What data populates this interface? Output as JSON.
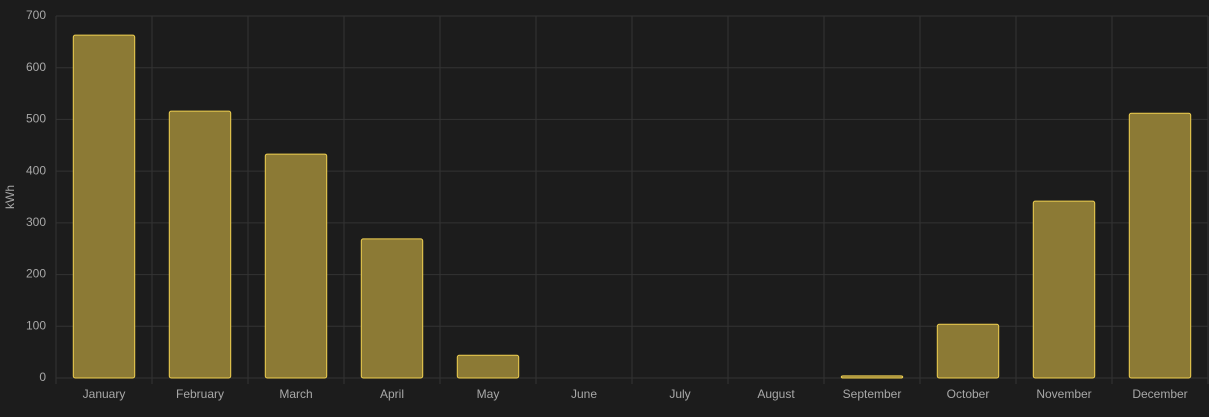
{
  "chart_data": {
    "type": "bar",
    "ylabel": "kWh",
    "categories": [
      "January",
      "February",
      "March",
      "April",
      "May",
      "June",
      "July",
      "August",
      "September",
      "October",
      "November",
      "December"
    ],
    "values": [
      663,
      516,
      433,
      269,
      44,
      0,
      0,
      0,
      4,
      104,
      342,
      512
    ],
    "color": "#8c7a35",
    "edge_color": "#f0d050",
    "ylim": [
      0,
      700
    ],
    "yticks": [
      0,
      100,
      200,
      300,
      400,
      500,
      600,
      700
    ],
    "grid": true
  }
}
